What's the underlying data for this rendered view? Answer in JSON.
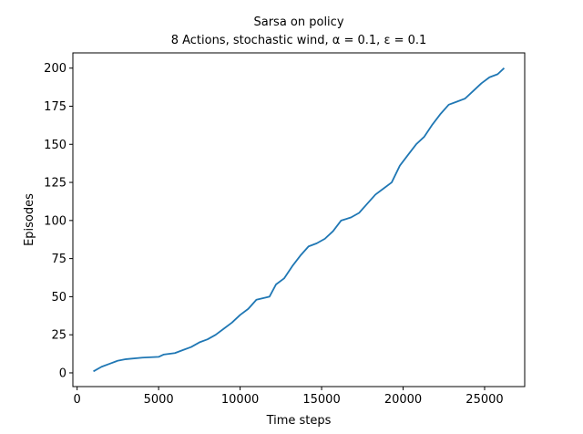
{
  "chart_data": {
    "type": "line",
    "title": "Sarsa on policy",
    "subtitle": "8 Actions, stochastic wind, α = 0.1, ε = 0.1",
    "x_label": "Time steps",
    "y_label": "Episodes",
    "x": [
      1000,
      1500,
      2000,
      2500,
      3000,
      4000,
      5000,
      5300,
      6000,
      6500,
      7000,
      7500,
      8000,
      8500,
      9000,
      9500,
      10000,
      10500,
      11000,
      11800,
      12200,
      12700,
      13200,
      13700,
      14200,
      14700,
      15200,
      15700,
      16200,
      16800,
      17300,
      17800,
      18300,
      18800,
      19300,
      19800,
      20300,
      20800,
      21300,
      21800,
      22300,
      22800,
      23300,
      23800,
      24300,
      24800,
      25300,
      25800,
      26200
    ],
    "series": [
      {
        "name": "Sarsa",
        "color": "#1f77b4",
        "values": [
          1,
          4,
          6,
          8,
          9,
          10,
          10.5,
          12,
          13,
          15,
          17,
          20,
          22,
          25,
          29,
          33,
          38,
          42,
          48,
          50,
          58,
          62,
          70,
          77,
          83,
          85,
          88,
          93,
          100,
          102,
          105,
          111,
          117,
          121,
          125,
          136,
          143,
          150,
          155,
          163,
          170,
          176,
          178,
          180,
          185,
          190,
          194,
          196,
          200
        ]
      }
    ],
    "xlim": [
      -260,
      27460
    ],
    "ylim": [
      -9,
      210
    ],
    "xticks": [
      0,
      5000,
      10000,
      15000,
      20000,
      25000
    ],
    "yticks": [
      0,
      25,
      50,
      75,
      100,
      125,
      150,
      175,
      200
    ]
  }
}
